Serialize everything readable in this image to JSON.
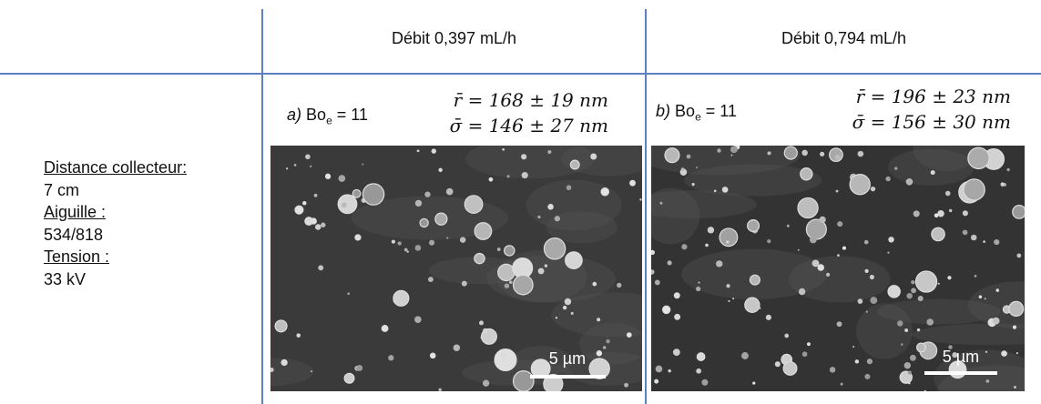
{
  "table": {
    "headers": [
      "Débit 0,397 mL/h",
      "Débit 0,794 mL/h"
    ],
    "conditions": [
      {
        "label": "Distance collecteur:",
        "value": "7 cm"
      },
      {
        "label": "Aiguille :",
        "value": "534/818"
      },
      {
        "label": "Tension :",
        "value": "33 kV"
      }
    ],
    "panels": [
      {
        "letter": "a)",
        "bo_symbol": "Bo",
        "bo_subscript": "e",
        "bo_value": "= 11",
        "r_line": "r̄ = 168 ± 19 nm",
        "sigma_line": "σ̄ = 146  ± 27 nm",
        "scale_bar": "5 µm"
      },
      {
        "letter": "b)",
        "bo_symbol": "Bo",
        "bo_subscript": "e",
        "bo_value": "= 11",
        "r_line": "r̄ = 196 ± 23 nm",
        "sigma_line": "σ̄ = 156  ± 30 nm",
        "scale_bar": "5 µm"
      }
    ]
  }
}
